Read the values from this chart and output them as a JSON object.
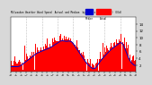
{
  "bg_color": "#d8d8d8",
  "plot_bg": "#ffffff",
  "bar_color": "#ff0000",
  "median_color": "#0000cc",
  "n_points": 1440,
  "ylim": [
    0,
    16
  ],
  "ytick_vals": [
    2,
    4,
    6,
    8,
    10,
    12,
    14
  ],
  "grid_hours": [
    180,
    360,
    540,
    720,
    900,
    1080,
    1260
  ],
  "legend_labels": [
    "Median",
    "Actual"
  ],
  "title_text": "Milwaukee Weather Wind Speed  Actual and Median  by Minute",
  "seed": 7
}
